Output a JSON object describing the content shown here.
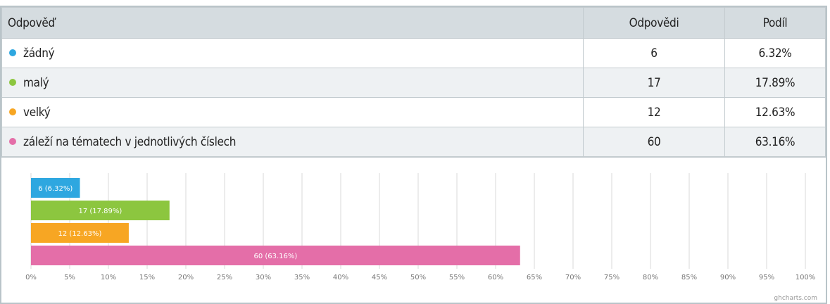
{
  "table": {
    "headers": {
      "answer": "Odpověď",
      "count": "Odpovědi",
      "share": "Podíl"
    },
    "rows": [
      {
        "label": "žádný",
        "count": "6",
        "share": "6.32%",
        "color": "#2ea7e0"
      },
      {
        "label": "malý",
        "count": "17",
        "share": "17.89%",
        "color": "#8cc63f"
      },
      {
        "label": "velký",
        "count": "12",
        "share": "12.63%",
        "color": "#f7a623"
      },
      {
        "label": "záleží na tématech v jednotlivých číslech",
        "count": "60",
        "share": "63.16%",
        "color": "#e46ea8"
      }
    ]
  },
  "chart_data": {
    "type": "bar",
    "orientation": "horizontal",
    "categories": [
      "žádný",
      "malý",
      "velký",
      "záleží na tématech v jednotlivých číslech"
    ],
    "values": [
      6.32,
      17.89,
      12.63,
      63.16
    ],
    "bar_labels": [
      "6 (6.32%)",
      "17 (17.89%)",
      "12 (12.63%)",
      "60 (63.16%)"
    ],
    "colors": [
      "#2ea7e0",
      "#8cc63f",
      "#f7a623",
      "#e46ea8"
    ],
    "xlim": [
      0,
      100
    ],
    "x_ticks": [
      "0%",
      "5%",
      "10%",
      "15%",
      "20%",
      "25%",
      "30%",
      "35%",
      "40%",
      "45%",
      "50%",
      "55%",
      "60%",
      "65%",
      "70%",
      "75%",
      "80%",
      "85%",
      "90%",
      "95%",
      "100%"
    ],
    "grid": "vertical"
  },
  "footer": {
    "credit": "ghcharts.com"
  }
}
